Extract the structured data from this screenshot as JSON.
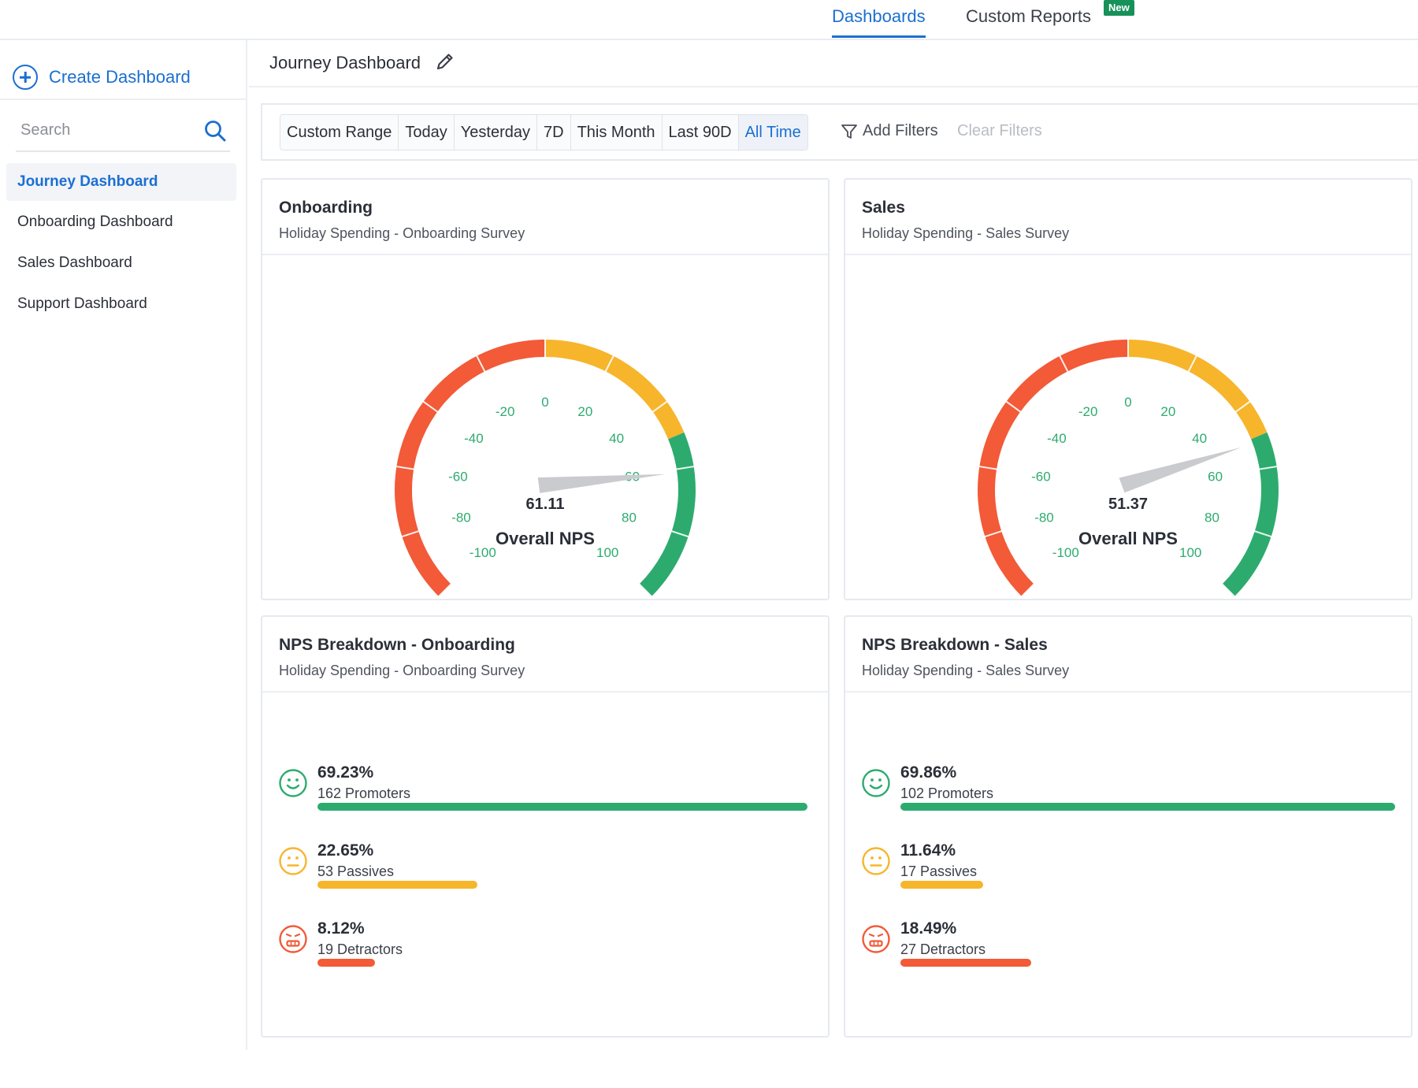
{
  "topnav": {
    "tabs": [
      {
        "label": "Dashboards",
        "active": true
      },
      {
        "label": "Custom Reports",
        "active": false,
        "badge": "New"
      }
    ]
  },
  "sidebar": {
    "create_label": "Create Dashboard",
    "search_placeholder": "Search",
    "items": [
      {
        "label": "Journey Dashboard",
        "active": true
      },
      {
        "label": "Onboarding Dashboard",
        "active": false
      },
      {
        "label": "Sales Dashboard",
        "active": false
      },
      {
        "label": "Support Dashboard",
        "active": false
      }
    ]
  },
  "header": {
    "title": "Journey Dashboard"
  },
  "filters": {
    "ranges": [
      "Custom Range",
      "Today",
      "Yesterday",
      "7D",
      "This Month",
      "Last 90D",
      "All Time"
    ],
    "active_range": "All Time",
    "add_label": "Add Filters",
    "clear_label": "Clear Filters"
  },
  "colors": {
    "accent": "#1b6fd1",
    "promoter": "#2dab6f",
    "passive": "#f7b52c",
    "detractor": "#f25a38"
  },
  "gauge_ticks": [
    "-100",
    "-80",
    "-60",
    "-40",
    "-20",
    "0",
    "20",
    "40",
    "60",
    "80",
    "100"
  ],
  "gauges": [
    {
      "title": "Onboarding",
      "subtitle": "Holiday Spending - Onboarding Survey",
      "value_text": "61.11",
      "value": 61.11,
      "label": "Overall NPS"
    },
    {
      "title": "Sales",
      "subtitle": "Holiday Spending - Sales Survey",
      "value_text": "51.37",
      "value": 51.37,
      "label": "Overall NPS"
    }
  ],
  "breakdowns": [
    {
      "title": "NPS Breakdown - Onboarding",
      "subtitle": "Holiday Spending - Onboarding Survey",
      "rows": [
        {
          "type": "promoter",
          "pct_text": "69.23%",
          "pct": 69.23,
          "count_text": "162 Promoters"
        },
        {
          "type": "passive",
          "pct_text": "22.65%",
          "pct": 22.65,
          "count_text": "53 Passives"
        },
        {
          "type": "detractor",
          "pct_text": "8.12%",
          "pct": 8.12,
          "count_text": "19 Detractors"
        }
      ]
    },
    {
      "title": "NPS Breakdown - Sales",
      "subtitle": "Holiday Spending - Sales Survey",
      "rows": [
        {
          "type": "promoter",
          "pct_text": "69.86%",
          "pct": 69.86,
          "count_text": "102 Promoters"
        },
        {
          "type": "passive",
          "pct_text": "11.64%",
          "pct": 11.64,
          "count_text": "17 Passives"
        },
        {
          "type": "detractor",
          "pct_text": "18.49%",
          "pct": 18.49,
          "count_text": "27 Detractors"
        }
      ]
    }
  ]
}
